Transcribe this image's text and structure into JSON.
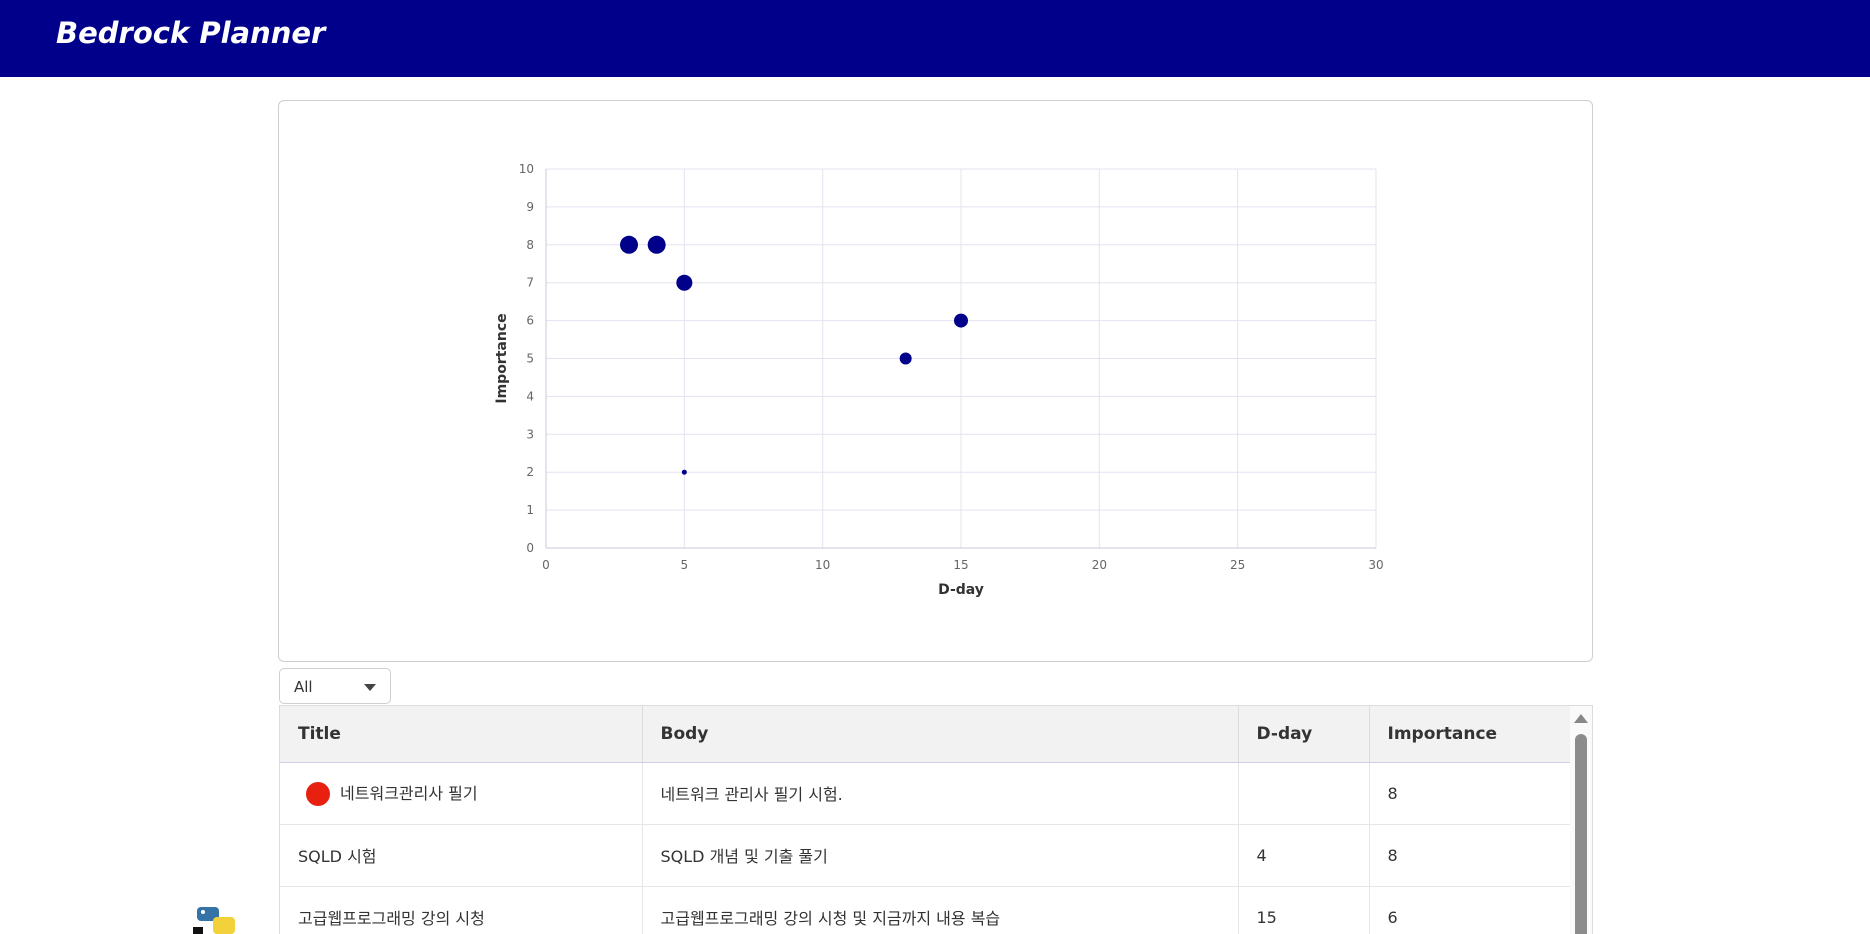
{
  "header": {
    "title": "Bedrock Planner"
  },
  "chart_data": {
    "type": "scatter",
    "xlabel": "D-day",
    "ylabel": "Importance",
    "xlim": [
      0,
      30
    ],
    "ylim": [
      0,
      10
    ],
    "x_ticks": [
      0,
      5,
      10,
      15,
      20,
      25,
      30
    ],
    "y_ticks": [
      0,
      1,
      2,
      3,
      4,
      5,
      6,
      7,
      8,
      9,
      10
    ],
    "grid": true,
    "point_color": "#00008b",
    "points": [
      {
        "x": 3,
        "y": 8,
        "size": 9
      },
      {
        "x": 4,
        "y": 8,
        "size": 9
      },
      {
        "x": 5,
        "y": 7,
        "size": 8
      },
      {
        "x": 15,
        "y": 6,
        "size": 7
      },
      {
        "x": 13,
        "y": 5,
        "size": 6
      },
      {
        "x": 5,
        "y": 2,
        "size": 2.5
      }
    ]
  },
  "filter": {
    "value": "All"
  },
  "table": {
    "columns": [
      "Title",
      "Body",
      "D-day",
      "Importance"
    ],
    "rows": [
      {
        "title": "네트워크관리사 필기",
        "body": "네트워크 관리사 필기 시험.",
        "dday": "",
        "importance": "8",
        "marker": true
      },
      {
        "title": "SQLD 시험",
        "body": "SQLD 개념 및 기출 풀기",
        "dday": "4",
        "importance": "8",
        "marker": false
      },
      {
        "title": "고급웹프로그래밍 강의 시청",
        "body": "고급웹프로그래밍 강의 시청 및 지금까지 내용 복습",
        "dday": "15",
        "importance": "6",
        "marker": false
      }
    ]
  },
  "icons": {
    "logo": "python-logo-icon",
    "marker": "record-dot-icon"
  }
}
